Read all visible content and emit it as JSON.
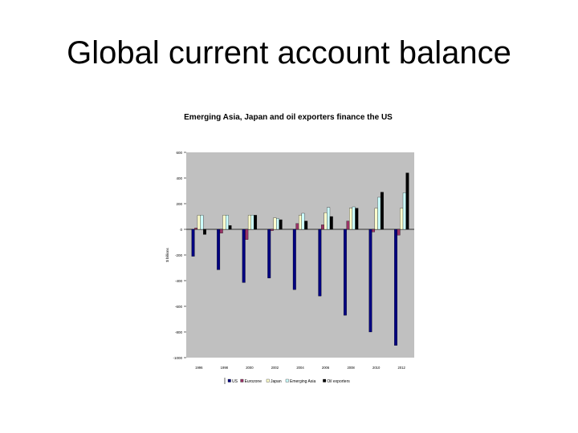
{
  "slide": {
    "title": "Global current account balance"
  },
  "colors": {
    "plot_background": "#c0c0c0",
    "US": "#000080",
    "Eurozone": "#993366",
    "Japan": "#ffffcc",
    "Emerging Asia": "#ccffff",
    "Oil exporters": "#000000"
  },
  "chart_data": {
    "type": "bar",
    "title": "Emerging Asia, Japan and oil exporters finance the US",
    "ylabel": "$ billions",
    "ylim": [
      -1000,
      600
    ],
    "yticks": [
      600,
      400,
      200,
      0,
      -200,
      -400,
      -600,
      -800,
      -1000
    ],
    "grid": false,
    "legend_position": "bottom",
    "categories": [
      "1996",
      "1998",
      "2000",
      "2002",
      "2004",
      "2006",
      "2008",
      "2010",
      "2012"
    ],
    "series": [
      {
        "name": "US",
        "values": [
          -210,
          -315,
          -415,
          -380,
          -470,
          -520,
          -670,
          -800,
          -905
        ]
      },
      {
        "name": "Eurozone",
        "values": [
          10,
          -30,
          -80,
          -10,
          45,
          35,
          65,
          -20,
          -45
        ]
      },
      {
        "name": "Japan",
        "values": [
          110,
          110,
          110,
          90,
          110,
          130,
          165,
          165,
          165
        ]
      },
      {
        "name": "Emerging Asia",
        "values": [
          110,
          110,
          110,
          85,
          125,
          170,
          175,
          250,
          285
        ]
      },
      {
        "name": "Oil exporters",
        "values": [
          -40,
          30,
          110,
          75,
          65,
          100,
          165,
          290,
          440
        ]
      }
    ],
    "reference_line": 0
  }
}
